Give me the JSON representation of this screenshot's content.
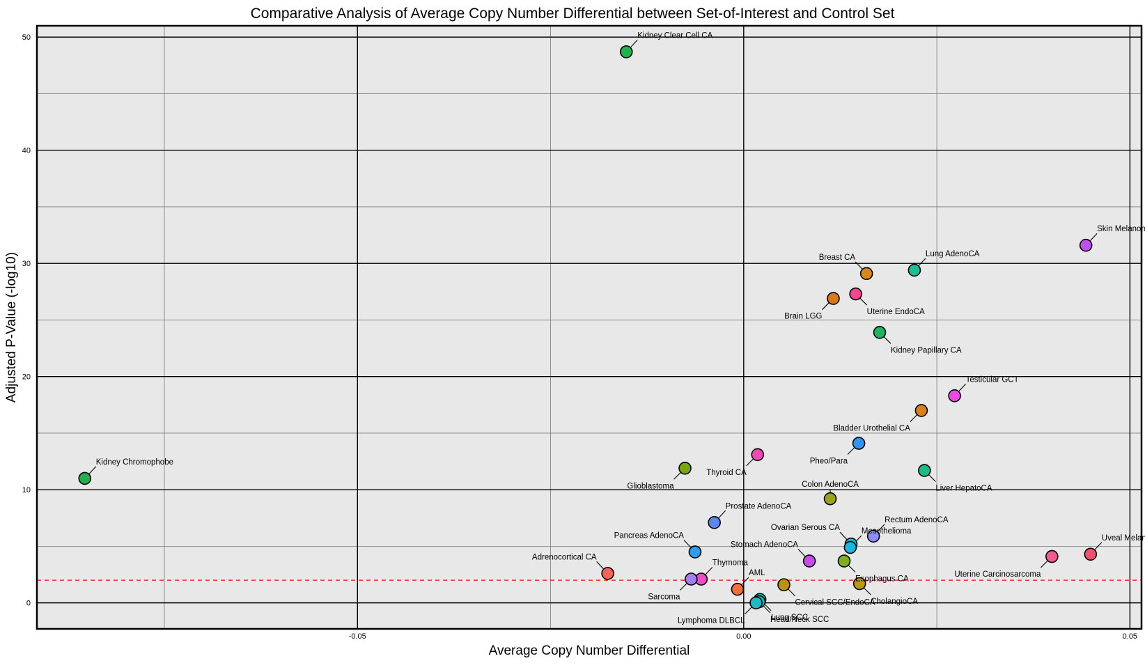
{
  "chart_data": {
    "type": "scatter",
    "title": "Comparative Analysis of Average Copy Number Differential between Set-of-Interest and Control Set",
    "xlabel": "Average Copy Number Differential",
    "ylabel": "Adjusted P-Value (-log10)",
    "xlim": [
      -0.0915,
      0.0515
    ],
    "ylim": [
      -2.3,
      51.0
    ],
    "x_ticks": [
      -0.05,
      0.0,
      0.05
    ],
    "x_tick_labels": [
      "-0.05",
      "0.00",
      "0.05"
    ],
    "y_ticks": [
      0,
      10,
      20,
      30,
      40,
      50
    ],
    "y_tick_labels": [
      "0",
      "10",
      "20",
      "30",
      "40",
      "50"
    ],
    "minor_x_ticks": [
      -0.075,
      -0.025,
      0.025
    ],
    "minor_y_ticks": [
      5,
      15,
      25,
      35,
      45
    ],
    "grid": true,
    "threshold_line": {
      "y": 2.0,
      "color": "#ff0000",
      "style": "dashed"
    },
    "colors": {
      "background": "#e8e8e8",
      "threshold": "#ff0000"
    },
    "points": [
      {
        "label": "Kidney Clear Cell CA",
        "x": -0.0152,
        "y": 48.7,
        "color": "#21b14f",
        "label_pos": "right-up"
      },
      {
        "label": "Skin Melanoma",
        "x": 0.0443,
        "y": 31.6,
        "color": "#c14ff5",
        "label_pos": "right-up"
      },
      {
        "label": "Lung AdenoCA",
        "x": 0.0221,
        "y": 29.4,
        "color": "#1fbe95",
        "label_pos": "right-up"
      },
      {
        "label": "Breast CA",
        "x": 0.0159,
        "y": 29.1,
        "color": "#d4881d",
        "label_pos": "left-up"
      },
      {
        "label": "Uterine EndoCA",
        "x": 0.0145,
        "y": 27.3,
        "color": "#f0488c",
        "label_pos": "right-down"
      },
      {
        "label": "Brain LGG",
        "x": 0.0116,
        "y": 26.9,
        "color": "#d97a1a",
        "label_pos": "left-down"
      },
      {
        "label": "Kidney Papillary CA",
        "x": 0.0176,
        "y": 23.9,
        "color": "#21b25f",
        "label_pos": "right-down"
      },
      {
        "label": "Testicular GCT",
        "x": 0.0273,
        "y": 18.3,
        "color": "#ea4ae6",
        "label_pos": "right-up"
      },
      {
        "label": "Bladder Urothelial CA",
        "x": 0.023,
        "y": 17.0,
        "color": "#d9801c",
        "label_pos": "left-down"
      },
      {
        "label": "Pheo/Para",
        "x": 0.0149,
        "y": 14.1,
        "color": "#2f94f2",
        "label_pos": "left-down"
      },
      {
        "label": "Thyroid CA",
        "x": 0.0018,
        "y": 13.1,
        "color": "#f04ab3",
        "label_pos": "left-down"
      },
      {
        "label": "Glioblastoma",
        "x": -0.0076,
        "y": 11.9,
        "color": "#77a814",
        "label_pos": "left-down"
      },
      {
        "label": "Liver HepatoCA",
        "x": 0.0234,
        "y": 11.7,
        "color": "#1fb988",
        "label_pos": "right-down"
      },
      {
        "label": "Kidney Chromophobe",
        "x": -0.0853,
        "y": 11.0,
        "color": "#26ad4d",
        "label_pos": "right-up"
      },
      {
        "label": "Colon AdenoCA",
        "x": 0.0112,
        "y": 9.2,
        "color": "#9aa31b",
        "label_pos": "above"
      },
      {
        "label": "Prostate AdenoCA",
        "x": -0.0038,
        "y": 7.1,
        "color": "#5d86f0",
        "label_pos": "right-up"
      },
      {
        "label": "Rectum AdenoCA",
        "x": 0.0168,
        "y": 5.9,
        "color": "#8f8df5",
        "label_pos": "right-up"
      },
      {
        "label": "Ovarian Serous CA",
        "x": 0.0139,
        "y": 5.2,
        "color": "#2ab0d8",
        "label_pos": "left-up"
      },
      {
        "label": "Mesothelioma",
        "x": 0.0138,
        "y": 4.9,
        "color": "#1fb5e0",
        "label_pos": "right-up"
      },
      {
        "label": "Pancreas AdenoCA",
        "x": -0.0063,
        "y": 4.5,
        "color": "#2c9cec",
        "label_pos": "left-up"
      },
      {
        "label": "Uveal Melanoma",
        "x": 0.0449,
        "y": 4.3,
        "color": "#f5506e",
        "label_pos": "right-up"
      },
      {
        "label": "Uterine Carcinosarcoma",
        "x": 0.0399,
        "y": 4.1,
        "color": "#f25a93",
        "label_pos": "left-down"
      },
      {
        "label": "Stomach AdenoCA",
        "x": 0.0085,
        "y": 3.7,
        "color": "#c54ee8",
        "label_pos": "left-up"
      },
      {
        "label": "Esophagus CA",
        "x": 0.013,
        "y": 3.7,
        "color": "#81ad22",
        "label_pos": "right-down"
      },
      {
        "label": "Adrenocortical CA",
        "x": -0.0176,
        "y": 2.6,
        "color": "#f2665a",
        "label_pos": "left-up"
      },
      {
        "label": "Thymoma",
        "x": -0.0055,
        "y": 2.1,
        "color": "#ee4cc8",
        "label_pos": "right-up"
      },
      {
        "label": "Sarcoma",
        "x": -0.0068,
        "y": 2.1,
        "color": "#a17ef3",
        "label_pos": "left-down"
      },
      {
        "label": "CholangioCA",
        "x": 0.015,
        "y": 1.7,
        "color": "#b99a18",
        "label_pos": "right-down"
      },
      {
        "label": "Cervical SCC/EndoCA",
        "x": 0.0052,
        "y": 1.6,
        "color": "#bb9314",
        "label_pos": "right-down"
      },
      {
        "label": "AML",
        "x": -0.0008,
        "y": 1.2,
        "color": "#f2703c",
        "label_pos": "right-up"
      },
      {
        "label": "Lung SCC",
        "x": 0.0021,
        "y": 0.3,
        "color": "#1fbab2",
        "label_pos": "right-down"
      },
      {
        "label": "Head/Neck SCC",
        "x": 0.002,
        "y": 0.1,
        "color": "#26b4b8",
        "label_pos": "right-down"
      },
      {
        "label": "Lymphoma DLBCL",
        "x": 0.0016,
        "y": 0.0,
        "color": "#21b8c2",
        "label_pos": "left-down"
      }
    ]
  }
}
